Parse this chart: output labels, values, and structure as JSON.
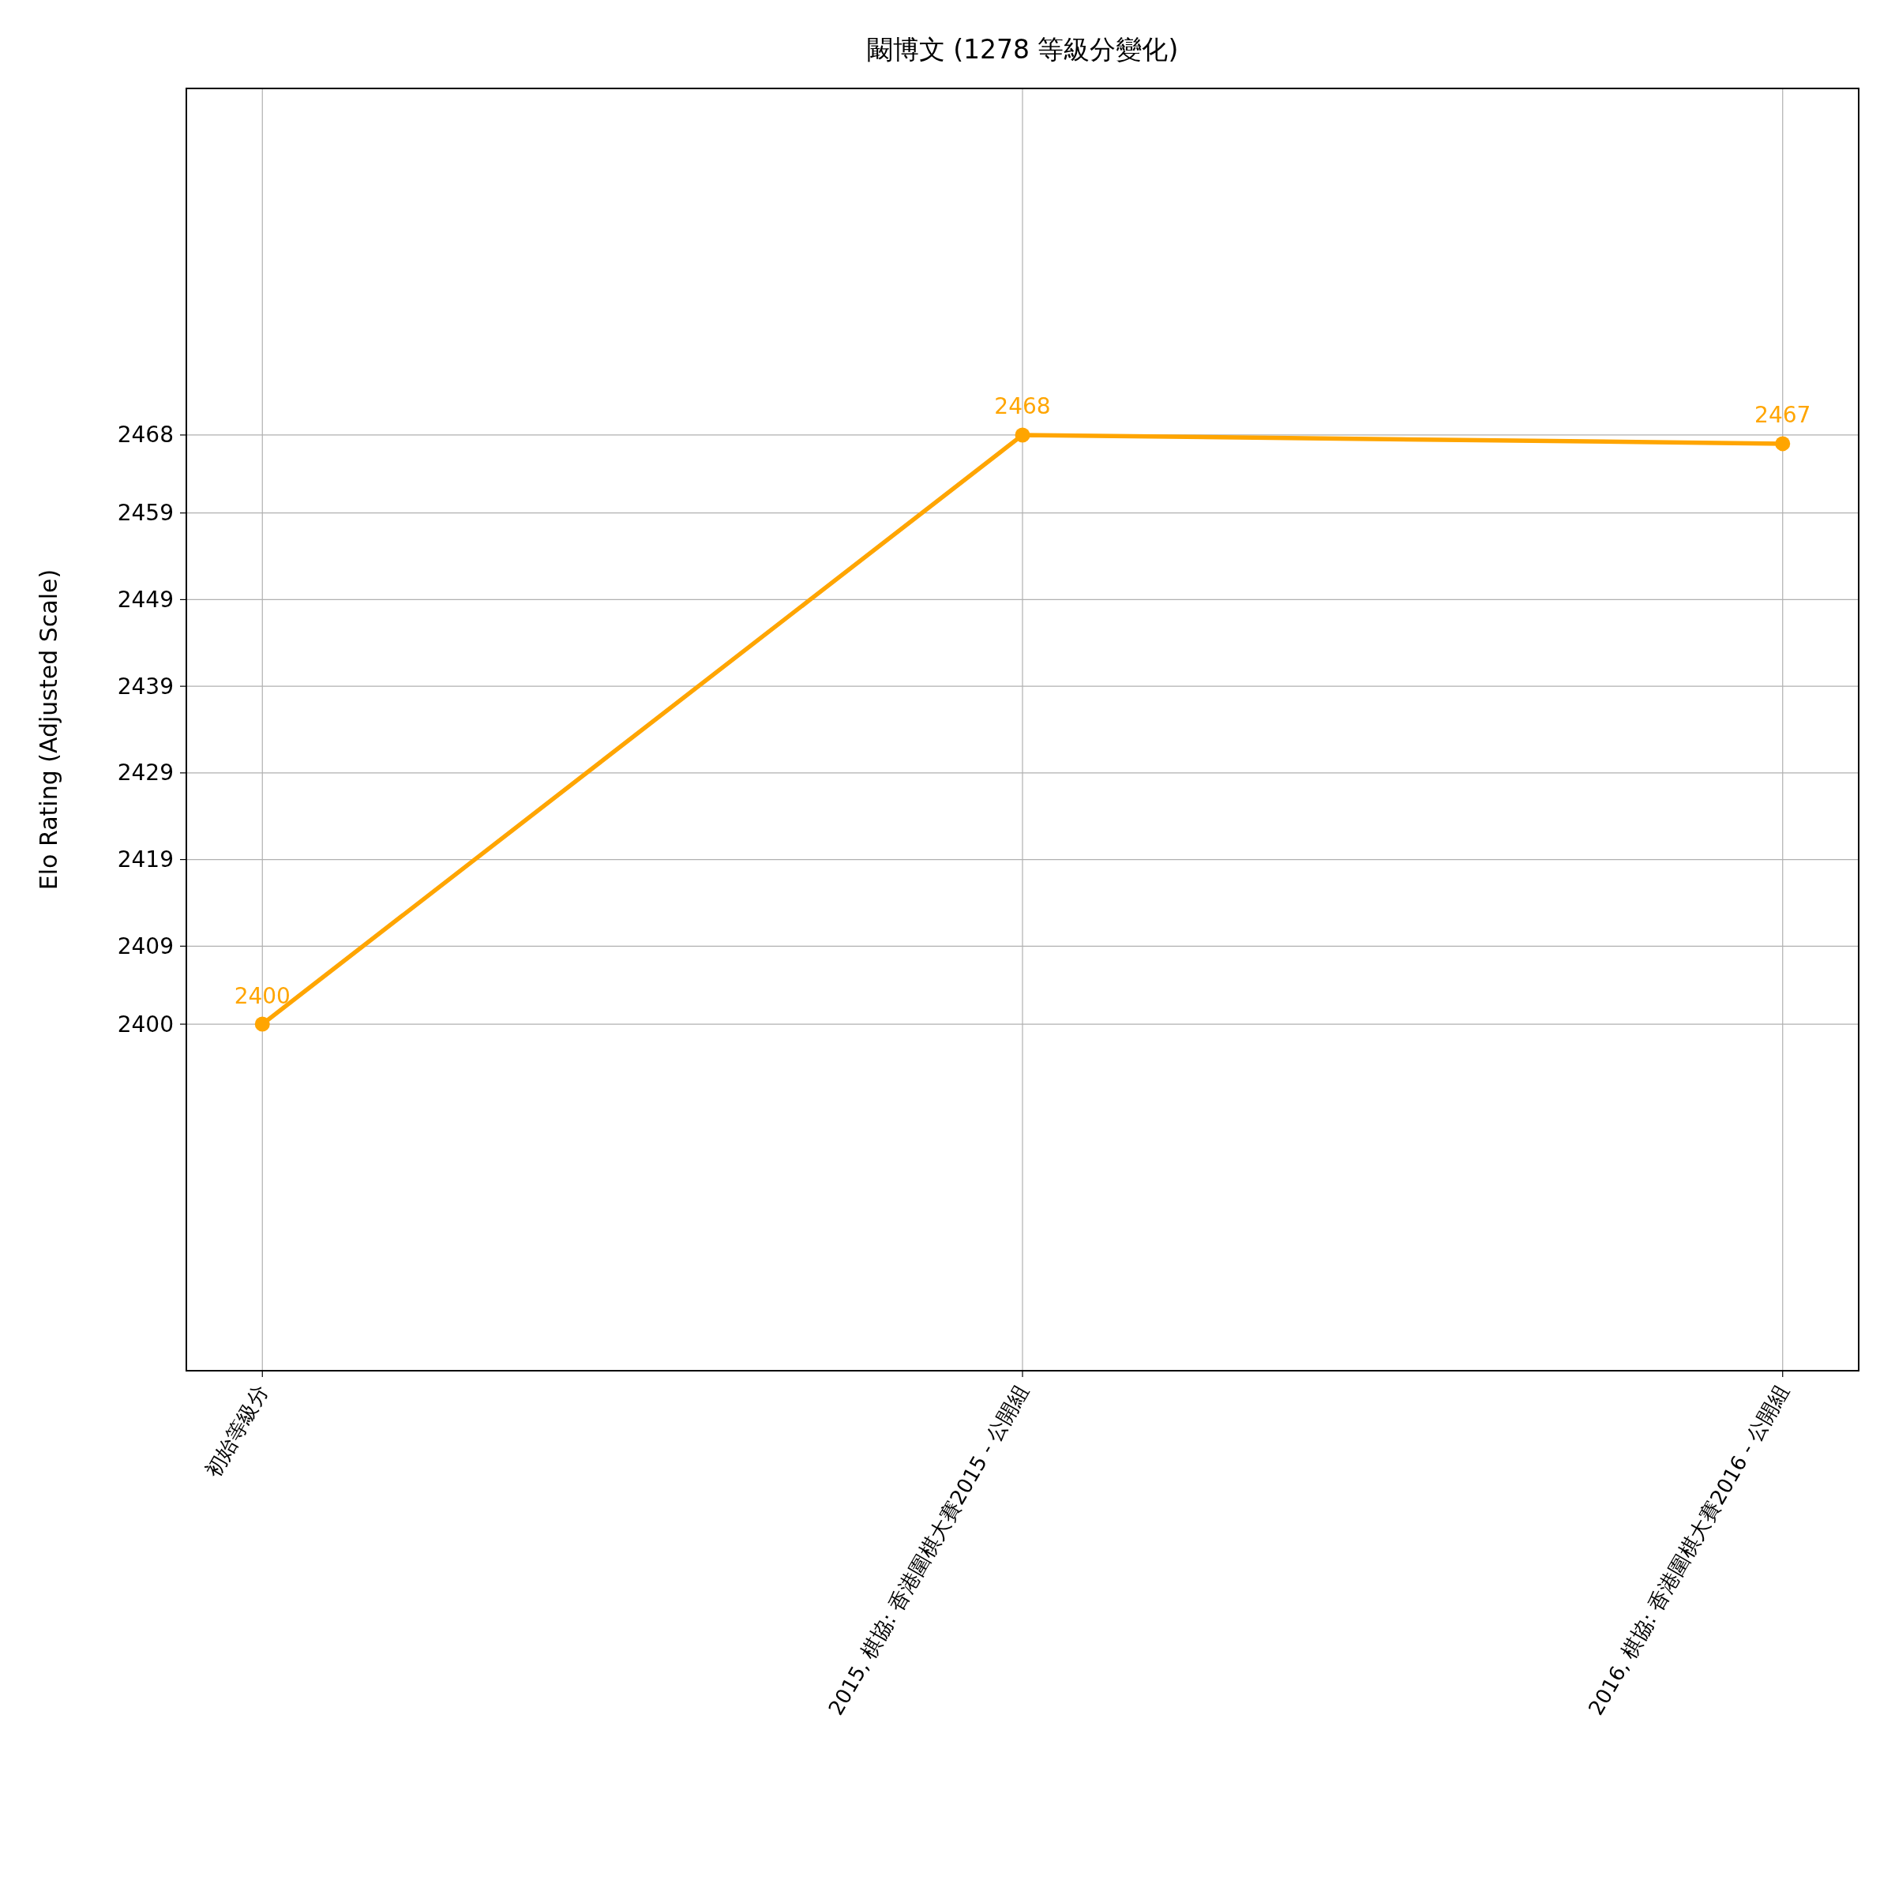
{
  "chart_data": {
    "type": "line",
    "title": "闞博文 (1278 等級分變化)",
    "ylabel": "Elo Rating (Adjusted Scale)",
    "categories": [
      "初始等級分",
      "2015, 棋協: 香港圍棋大賽2015 - 公開組",
      "2016, 棋協: 香港圍棋大賽2016 - 公開組"
    ],
    "series": [
      {
        "color": "#ffa500",
        "values": [
          2400,
          2468,
          2467
        ]
      }
    ],
    "data_labels": true,
    "ylim": [
      2360,
      2508
    ],
    "yticks": [
      2400,
      2409,
      2419,
      2429,
      2439,
      2449,
      2459,
      2468
    ],
    "grid": true,
    "marker": "circle",
    "line_style": "solid"
  }
}
